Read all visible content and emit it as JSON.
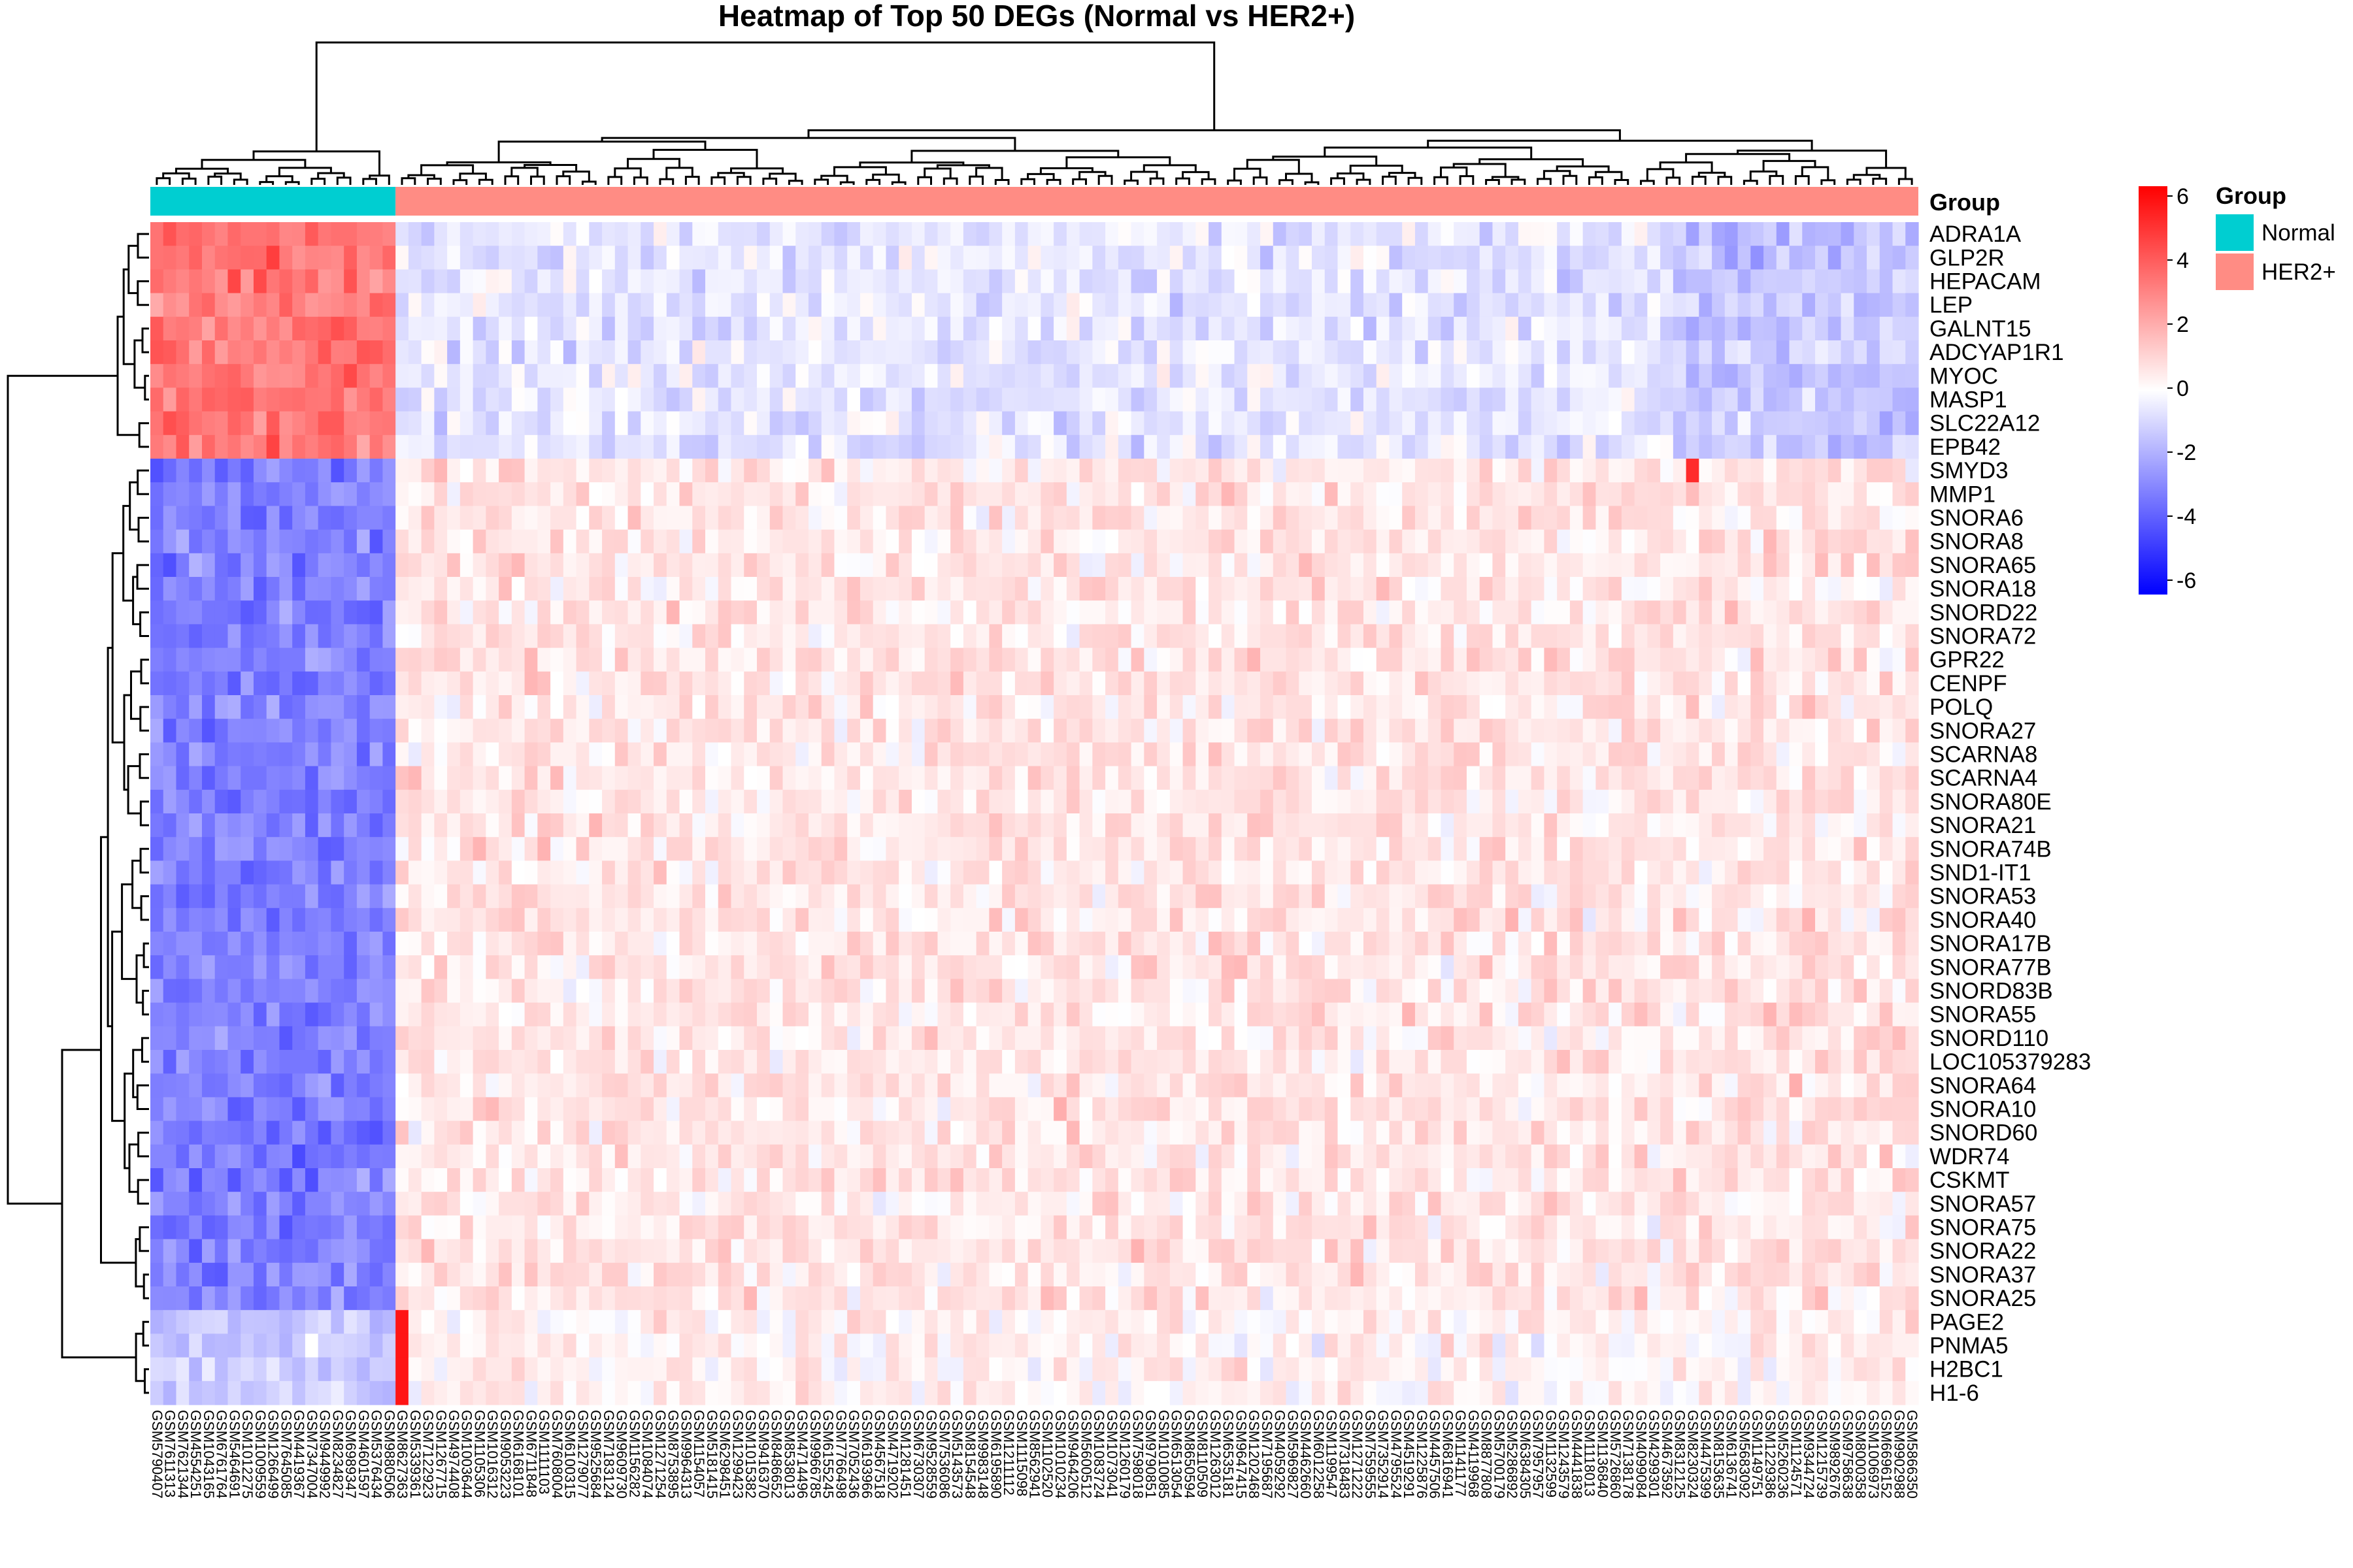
{
  "chart_data": {
    "type": "heatmap",
    "title": "Heatmap of Top 50 DEGs (Normal vs HER2+)",
    "genes": [
      "ADRA1A",
      "GLP2R",
      "HEPACAM",
      "LEP",
      "GALNT15",
      "ADCYAP1R1",
      "MYOC",
      "MASP1",
      "SLC22A12",
      "EPB42",
      "SMYD3",
      "MMP1",
      "SNORA6",
      "SNORA8",
      "SNORA65",
      "SNORA18",
      "SNORD22",
      "SNORA72",
      "GPR22",
      "CENPF",
      "POLQ",
      "SNORA27",
      "SCARNA8",
      "SCARNA4",
      "SNORA80E",
      "SNORA21",
      "SNORA74B",
      "SND1-IT1",
      "SNORA53",
      "SNORA40",
      "SNORA17B",
      "SNORA77B",
      "SNORD83B",
      "SNORA55",
      "SNORD110",
      "LOC105379283",
      "SNORA64",
      "SNORA10",
      "SNORD60",
      "WDR74",
      "CSKMT",
      "SNORA57",
      "SNORA75",
      "SNORA22",
      "SNORA37",
      "SNORA25",
      "PAGE2",
      "PNMA5",
      "H2BC1",
      "H1-6"
    ],
    "gene_clusters": [
      {
        "genes": "ADRA1A–EPB42",
        "Normal": 3.2,
        "HER2+": -0.6
      },
      {
        "genes": "SMYD3–SNORA25",
        "Normal": -3.0,
        "HER2+": 0.6
      },
      {
        "genes": "PAGE2–H1-6",
        "Normal": -1.2,
        "HER2+": 0.3
      }
    ],
    "annotation": {
      "title": "Group",
      "groups": [
        {
          "name": "Normal",
          "color": "#00CED1",
          "n_samples": 19
        },
        {
          "name": "HER2+",
          "color": "#FF8C84",
          "n_samples": 118
        }
      ]
    },
    "color_scale": {
      "low": "#0000FF",
      "mid": "#FFFFFF",
      "high": "#FF0000",
      "min": -6,
      "max": 6,
      "ticks": [
        "6",
        "4",
        "2",
        "0",
        "-2",
        "-4",
        "-6"
      ]
    },
    "sample_label_prefix": "GSM"
  }
}
